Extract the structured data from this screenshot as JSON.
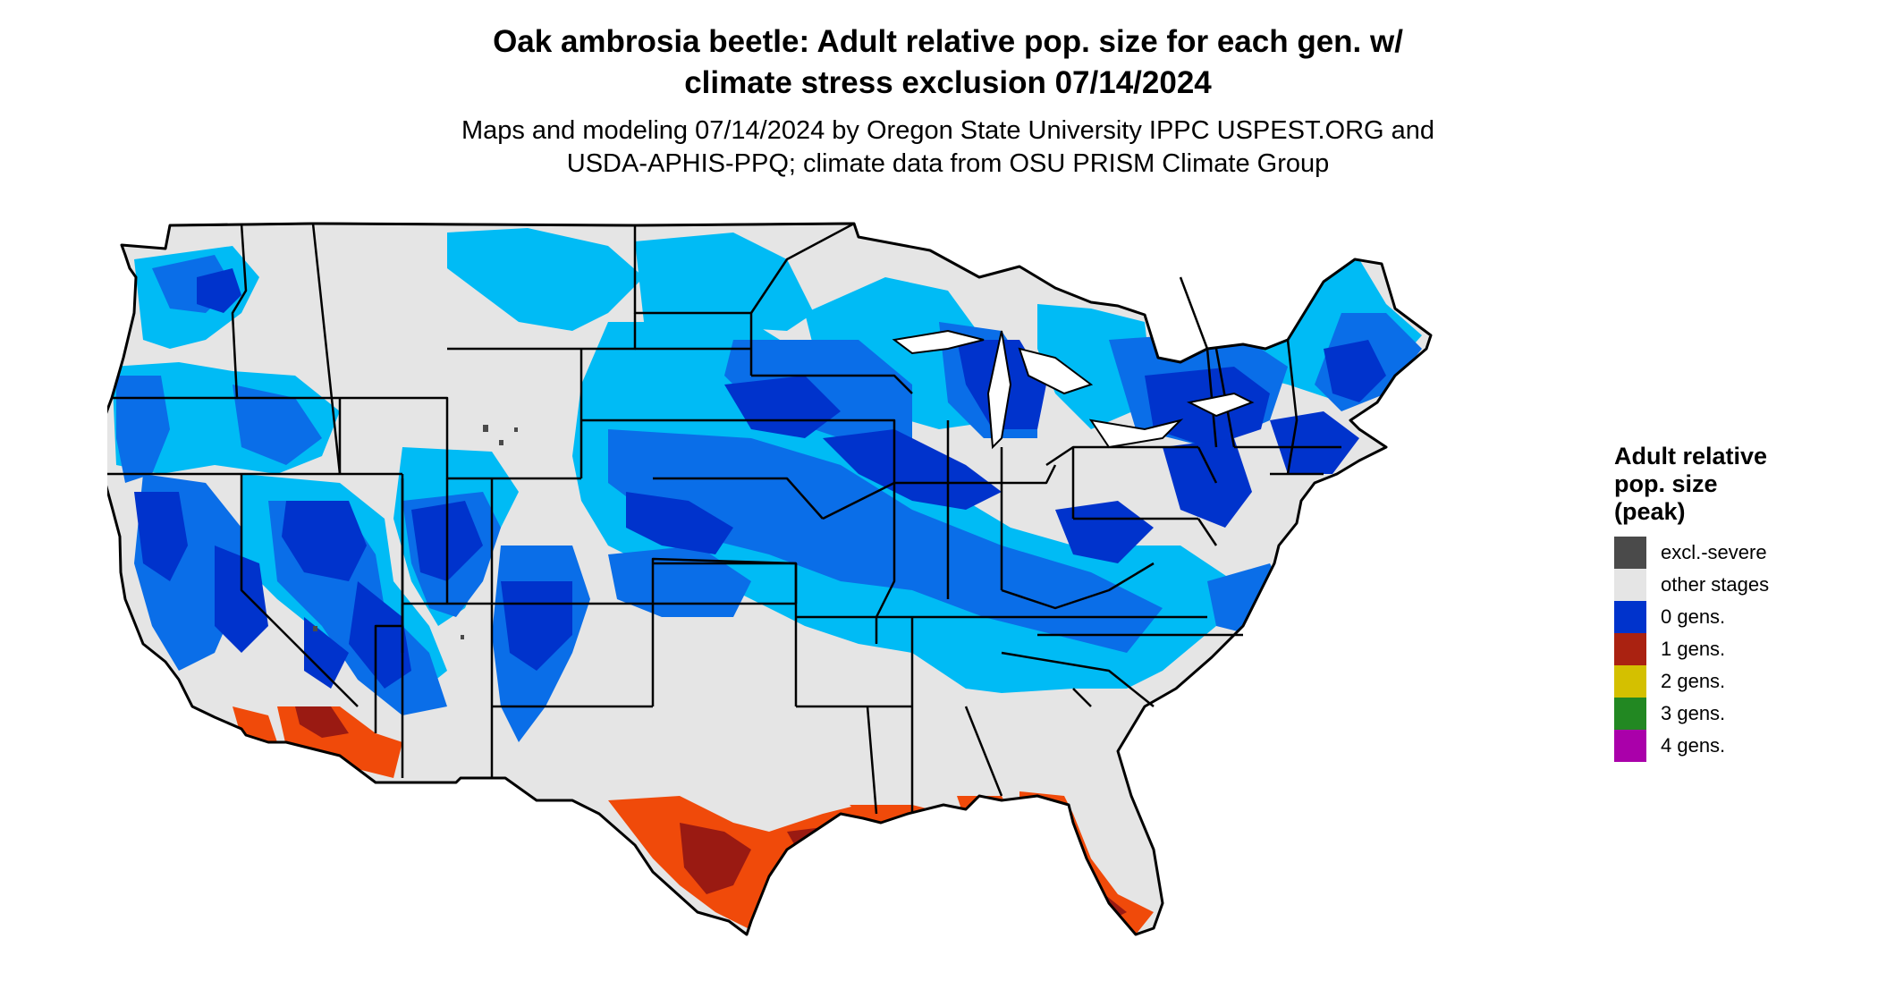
{
  "title_lines": [
    "Oak ambrosia beetle: Adult relative pop. size for each gen. w/",
    "climate stress exclusion 07/14/2024"
  ],
  "subtitle_lines": [
    "Maps and modeling 07/14/2024 by Oregon State University IPPC USPEST.ORG and",
    "USDA-APHIS-PPQ; climate data from OSU PRISM Climate Group"
  ],
  "legend": {
    "title_lines": [
      "Adult relative",
      "pop. size",
      "(peak)"
    ],
    "items": [
      {
        "label": "excl.-severe",
        "color": "#4a4a4a"
      },
      {
        "label": "other stages",
        "color": "#e5e5e5"
      },
      {
        "label": "0 gens.",
        "color": "#0033cc"
      },
      {
        "label": "1 gens.",
        "color": "#aa2211"
      },
      {
        "label": "2 gens.",
        "color": "#d4c000"
      },
      {
        "label": "3 gens.",
        "color": "#228822"
      },
      {
        "label": "4 gens.",
        "color": "#aa00aa"
      }
    ]
  },
  "map": {
    "colors": {
      "land": "#e5e5e5",
      "light_blue": "#00bbf5",
      "mid_blue": "#0a6ee8",
      "dark_blue": "#0033cc",
      "orange": "#f04a0a",
      "dark_red": "#9a1a12",
      "border": "#000000"
    }
  }
}
